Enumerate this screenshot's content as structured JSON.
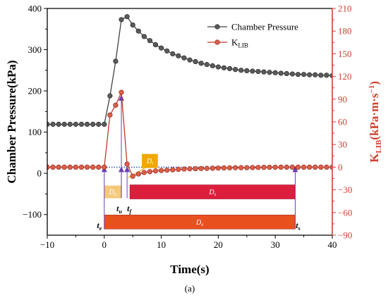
{
  "chart_data": {
    "type": "line",
    "caption": "(a)",
    "xlabel": "Time(s)",
    "ylabel_left": "Chamber Pressure(kPa)",
    "ylabel_right": {
      "main": "K",
      "sub": "LIB",
      "units": "(kPa·m·s",
      "units_sup": "−1",
      "units_close": ")"
    },
    "xlim": [
      -10,
      40
    ],
    "ylim_left": [
      -150,
      400
    ],
    "ylim_right": [
      -90,
      210
    ],
    "xticks": [
      -10,
      0,
      10,
      20,
      30,
      40
    ],
    "xtick_labels": [
      "−10",
      "0",
      "10",
      "20",
      "30",
      "40"
    ],
    "yticks_left": [
      -100,
      0,
      100,
      200,
      300,
      400
    ],
    "ytick_labels_left": [
      "−100",
      "0",
      "100",
      "200",
      "300",
      "400"
    ],
    "yticks_right": [
      -90,
      -60,
      -30,
      0,
      30,
      60,
      90,
      120,
      150,
      180,
      210
    ],
    "ytick_labels_right": [
      "−90",
      "−60",
      "−30",
      "0",
      "30",
      "60",
      "90",
      "120",
      "150",
      "180",
      "210"
    ],
    "colors": {
      "pressure": "#404040",
      "klib": "#c0392b",
      "right_axis": "#d04030",
      "markers": "#6a3fb0",
      "zero_line": "#1a3a9a",
      "dn": "#f5c97a",
      "dt": "#f0a800",
      "ds": "#dc1e3c",
      "de": "#e8511e"
    },
    "series": [
      {
        "name": "Chamber Pressure",
        "axis": "left",
        "x": [
          -10,
          -9,
          -8,
          -7,
          -6,
          -5,
          -4,
          -3,
          -2,
          -1,
          0,
          1,
          2,
          3,
          4,
          5,
          6,
          7,
          8,
          9,
          10,
          11,
          12,
          13,
          14,
          15,
          16,
          17,
          18,
          19,
          20,
          21,
          22,
          23,
          24,
          25,
          26,
          27,
          28,
          29,
          30,
          31,
          32,
          33,
          34,
          35,
          36,
          37,
          38,
          39,
          40
        ],
        "values": [
          119,
          119,
          119,
          119,
          119,
          119,
          119,
          119,
          119,
          119,
          119,
          188,
          272,
          373,
          380,
          360,
          345,
          332,
          322,
          312,
          304,
          297,
          290,
          285,
          280,
          275,
          271,
          267,
          264,
          261,
          258,
          256,
          254,
          252,
          250,
          249,
          248,
          247,
          246,
          245,
          244,
          243,
          242,
          241,
          240,
          240,
          239,
          239,
          238,
          238,
          237
        ]
      },
      {
        "name": "K",
        "name_sub": "LIB",
        "axis": "right",
        "x": [
          -10,
          -9,
          -8,
          -7,
          -6,
          -5,
          -4,
          -3,
          -2,
          -1,
          0,
          1,
          2,
          3,
          4,
          5,
          6,
          7,
          8,
          9,
          10,
          11,
          12,
          13,
          14,
          15,
          16,
          17,
          18,
          19,
          20,
          21,
          22,
          23,
          24,
          25,
          26,
          27,
          28,
          29,
          30,
          31,
          32,
          33,
          34,
          35,
          36,
          37,
          38,
          39,
          40
        ],
        "values": [
          0,
          0,
          0,
          0,
          0,
          0,
          0,
          0,
          0,
          0,
          0,
          69,
          82,
          99,
          4,
          -12,
          -9,
          -7,
          -6,
          -5,
          -4.5,
          -4,
          -3.5,
          -3,
          -2.5,
          -2.2,
          -2,
          -1.8,
          -1.6,
          -1.4,
          -1.2,
          -1,
          -0.9,
          -0.8,
          -0.7,
          -0.6,
          -0.5,
          -0.4,
          -0.3,
          -0.2,
          -0.1,
          0,
          0,
          0,
          0,
          0,
          0,
          0,
          0,
          0,
          0
        ]
      }
    ],
    "annotations": {
      "points": [
        {
          "label": "t",
          "sub": "e",
          "x": 0
        },
        {
          "label": "t",
          "sub": "u",
          "x": 3
        },
        {
          "label": "t",
          "sub": "f",
          "x": 4
        },
        {
          "label": "t",
          "sub": "s",
          "x": 33.5
        }
      ],
      "boxes": [
        {
          "label": "D",
          "sub": "n",
          "x0": 0,
          "x1": 3,
          "y": -45
        },
        {
          "label": "D",
          "sub": "t",
          "x0": 6.6,
          "x1": 9.4,
          "y": 30
        },
        {
          "label": "D",
          "sub": "s",
          "x0": 4.5,
          "x1": 33.5,
          "y": -45
        },
        {
          "label": "D",
          "sub": "e",
          "x0": 0,
          "x1": 33.5,
          "y": -118
        }
      ]
    },
    "legend": "top-right"
  }
}
